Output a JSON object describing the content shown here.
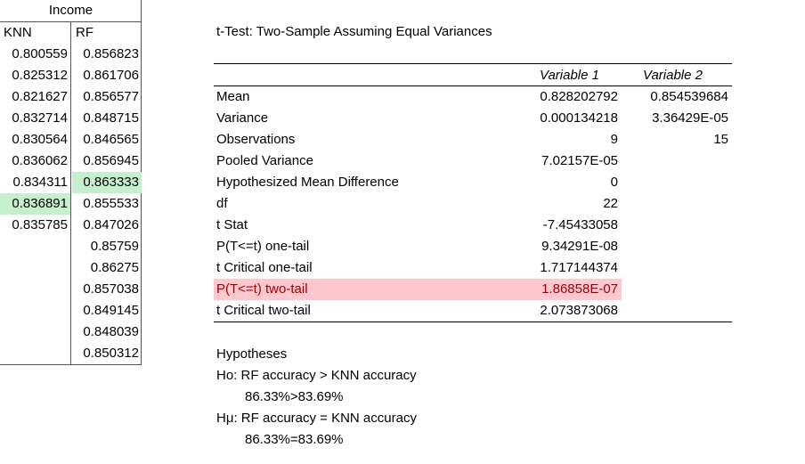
{
  "data_table": {
    "header": "Income",
    "columns": [
      "KNN",
      "RF"
    ],
    "knn": [
      "0.800559",
      "0.825312",
      "0.821627",
      "0.832714",
      "0.830564",
      "0.836062",
      "0.834311",
      "0.836891",
      "0.835785"
    ],
    "rf": [
      "0.856823",
      "0.861706",
      "0.856577",
      "0.848715",
      "0.846565",
      "0.856945",
      "0.863333",
      "0.855533",
      "0.847026",
      "0.85759",
      "0.86275",
      "0.857038",
      "0.849145",
      "0.848039",
      "0.850312"
    ],
    "highlight_color": "#c6efce"
  },
  "ttest": {
    "title": "t-Test: Two-Sample Assuming Equal Variances",
    "col_headers": [
      "Variable 1",
      "Variable 2"
    ],
    "rows": [
      {
        "label": "Mean",
        "v1": "0.828202792",
        "v2": "0.854539684"
      },
      {
        "label": "Variance",
        "v1": "0.000134218",
        "v2": "3.36429E-05"
      },
      {
        "label": "Observations",
        "v1": "9",
        "v2": "15"
      },
      {
        "label": "Pooled Variance",
        "v1": "7.02157E-05",
        "v2": ""
      },
      {
        "label": "Hypothesized Mean Difference",
        "v1": "0",
        "v2": ""
      },
      {
        "label": "df",
        "v1": "22",
        "v2": ""
      },
      {
        "label": "t Stat",
        "v1": "-7.45433058",
        "v2": ""
      },
      {
        "label": "P(T<=t) one-tail",
        "v1": "9.34291E-08",
        "v2": ""
      },
      {
        "label": "t Critical one-tail",
        "v1": "1.717144374",
        "v2": ""
      },
      {
        "label": "P(T<=t) two-tail",
        "v1": "1.86858E-07",
        "v2": ""
      },
      {
        "label": "t Critical two-tail",
        "v1": "2.073873068",
        "v2": ""
      }
    ],
    "highlight_color": "#ffc7ce",
    "highlight_text_color": "#9c0006"
  },
  "hypotheses": {
    "title": "Hypotheses",
    "h0": "Ho: RF accuracy > KNN accuracy",
    "h0_detail": "86.33%>83.69%",
    "h1": "Hμ: RF accuracy = KNN accuracy",
    "h1_detail": "86.33%=83.69%"
  }
}
